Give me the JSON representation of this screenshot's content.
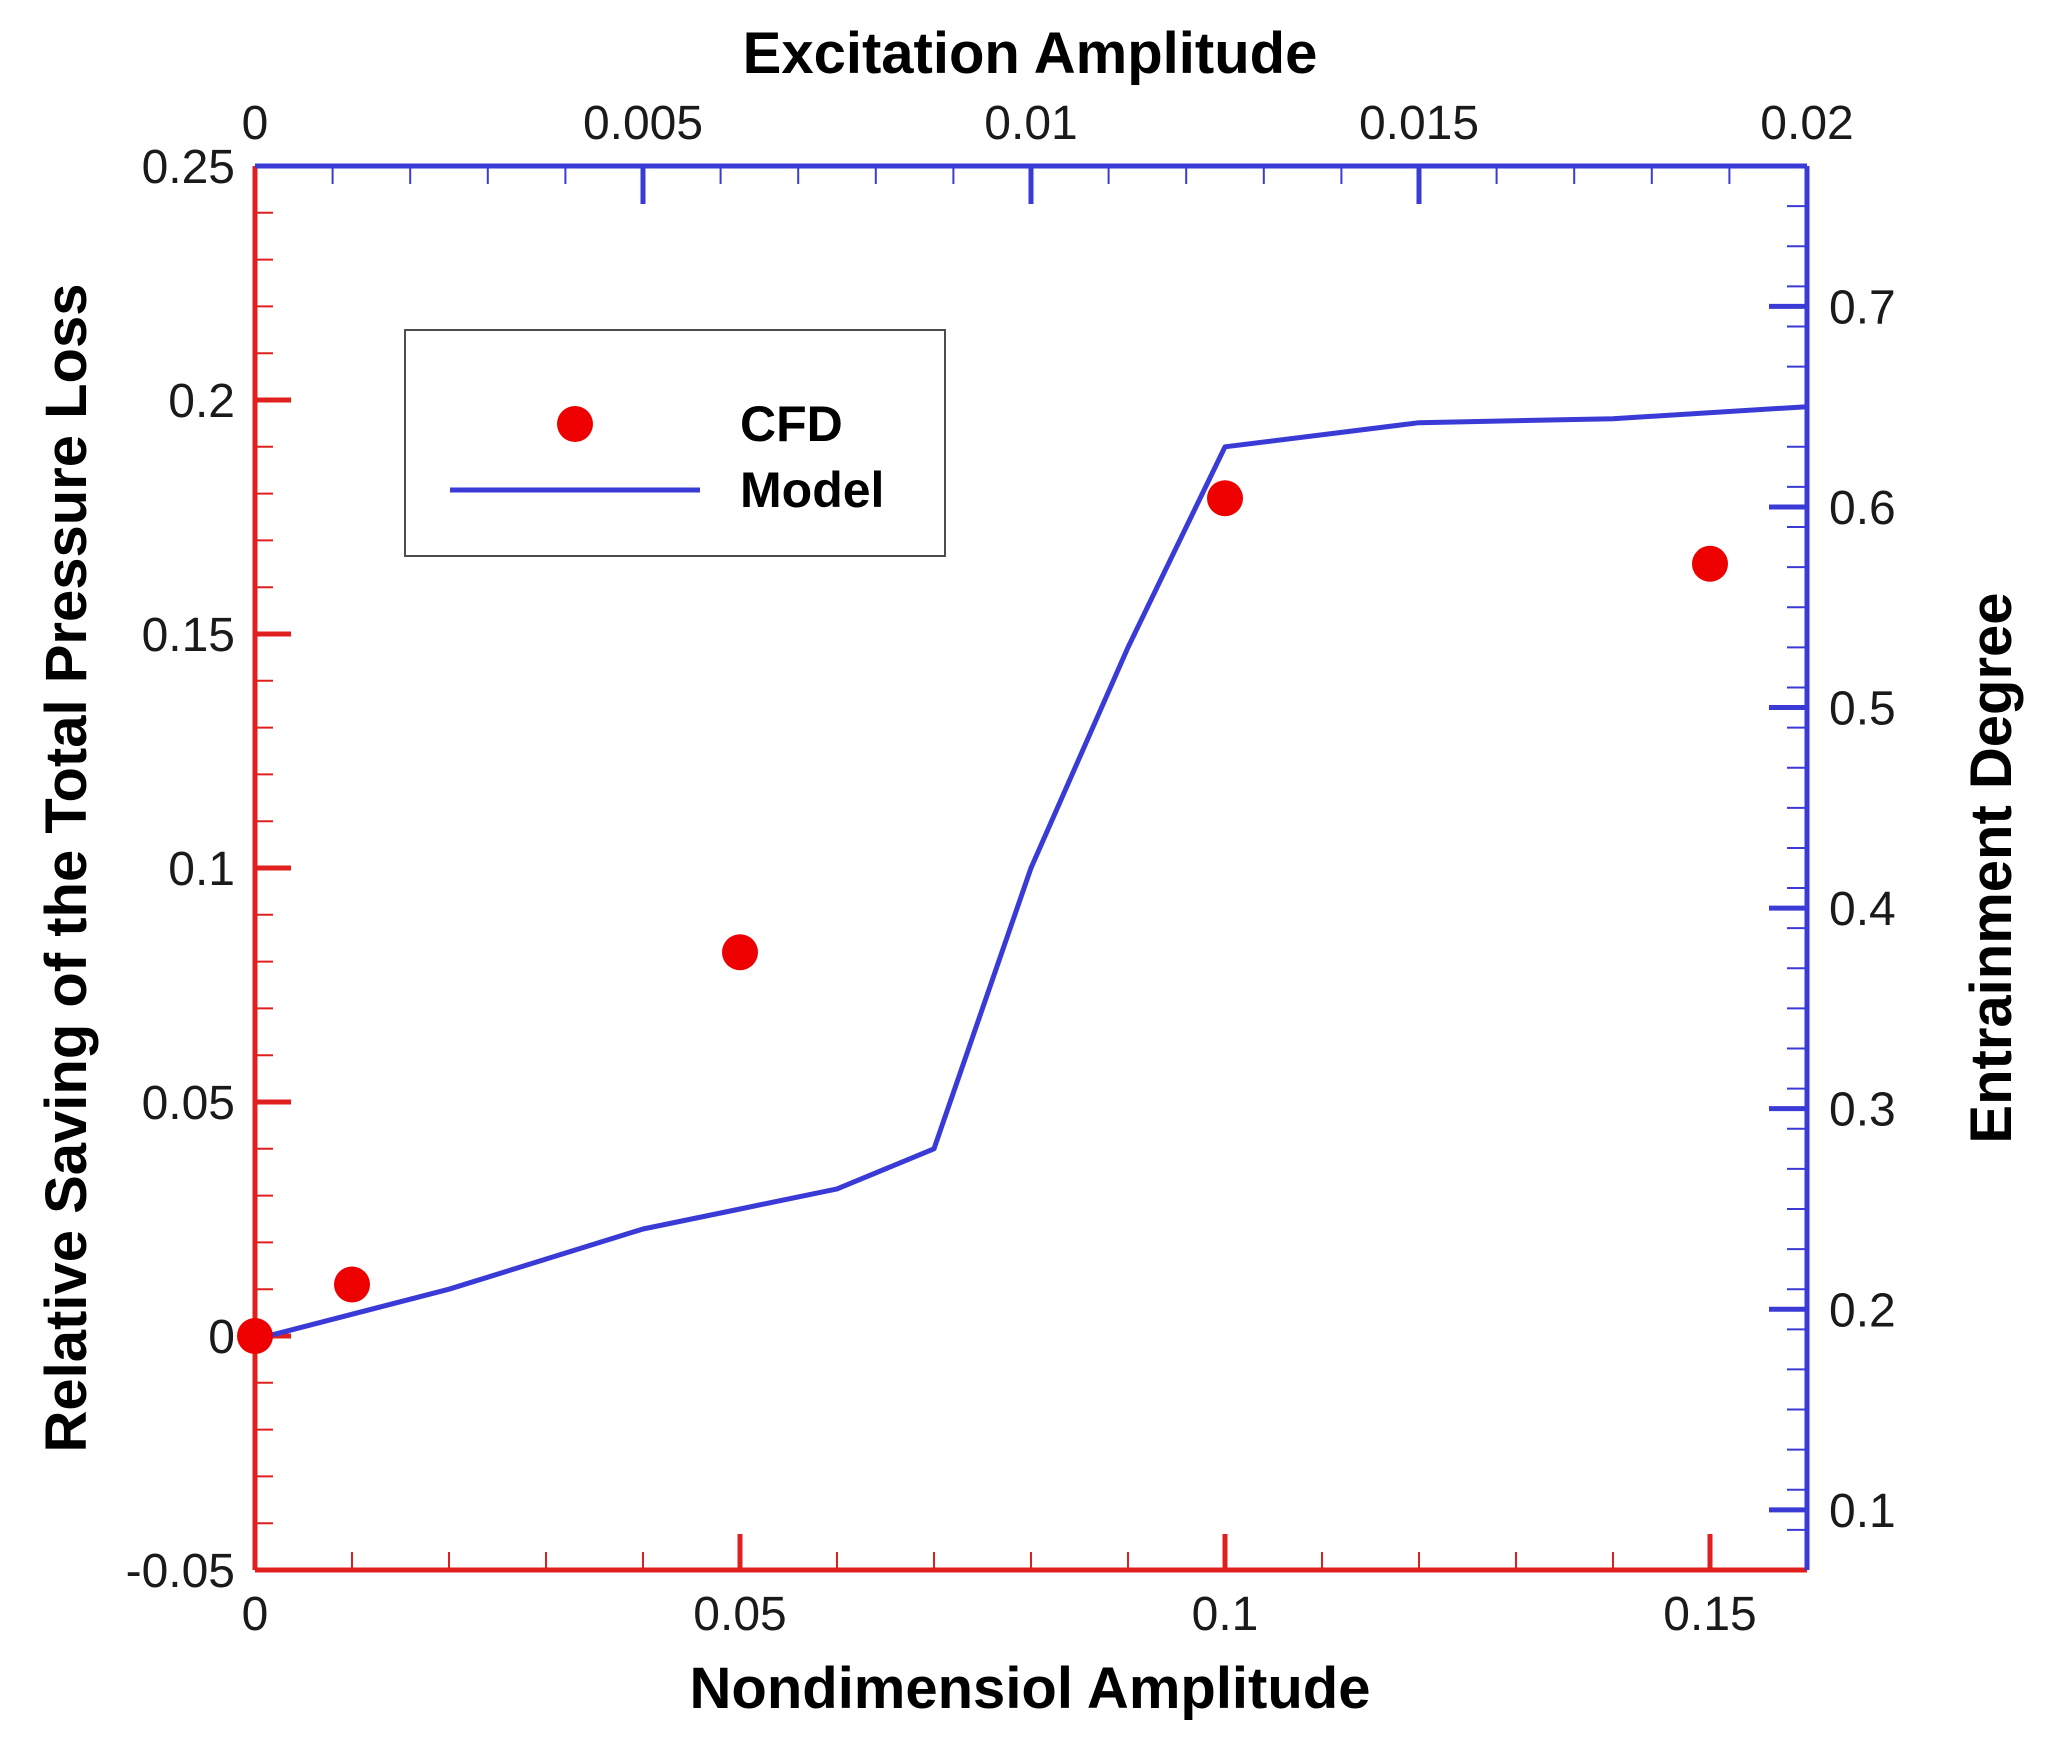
{
  "chart_data": {
    "type": "scatter",
    "title": "",
    "xlabel": "Nondimensiol Amplitude",
    "x2label": "Excitation Amplitude",
    "ylabel": "Relative Saving of the Total Pressure Loss",
    "y2label": "Entrainment Degree",
    "xlim": [
      0,
      0.16
    ],
    "x2lim": [
      0,
      0.02
    ],
    "ylim": [
      -0.05,
      0.25
    ],
    "y2lim": [
      0.07,
      0.77
    ],
    "xticks": [
      0,
      0.05,
      0.1,
      0.15
    ],
    "xtick_labels": [
      "0",
      "0.05",
      "0.1",
      "0.15"
    ],
    "x2ticks": [
      0,
      0.005,
      0.01,
      0.015,
      0.02
    ],
    "x2tick_labels": [
      "0",
      "0.005",
      "0.01",
      "0.015",
      "0.02"
    ],
    "yticks": [
      -0.05,
      0,
      0.05,
      0.1,
      0.15,
      0.2,
      0.25
    ],
    "ytick_labels": [
      "-0.05",
      "0",
      "0.05",
      "0.1",
      "0.15",
      "0.2",
      "0.25"
    ],
    "y2ticks": [
      0.1,
      0.2,
      0.3,
      0.4,
      0.5,
      0.6,
      0.7
    ],
    "y2tick_labels": [
      "0.1",
      "0.2",
      "0.3",
      "0.4",
      "0.5",
      "0.6",
      "0.7"
    ],
    "grid": false,
    "legend_position": "top-left",
    "series": [
      {
        "name": "CFD",
        "type": "scatter",
        "axis": "left",
        "color": "#ee0000",
        "x": [
          0,
          0.01,
          0.05,
          0.1,
          0.15
        ],
        "y": [
          0.0,
          0.011,
          0.082,
          0.179,
          0.165
        ]
      },
      {
        "name": "Model",
        "type": "line",
        "axis": "right",
        "color": "#3a3ad6",
        "x": [
          0,
          0.02,
          0.04,
          0.05,
          0.06,
          0.07,
          0.08,
          0.09,
          0.1,
          0.12,
          0.14,
          0.16
        ],
        "y": [
          0.185,
          0.21,
          0.24,
          0.25,
          0.26,
          0.28,
          0.42,
          0.53,
          0.63,
          0.642,
          0.644,
          0.65
        ]
      }
    ]
  }
}
